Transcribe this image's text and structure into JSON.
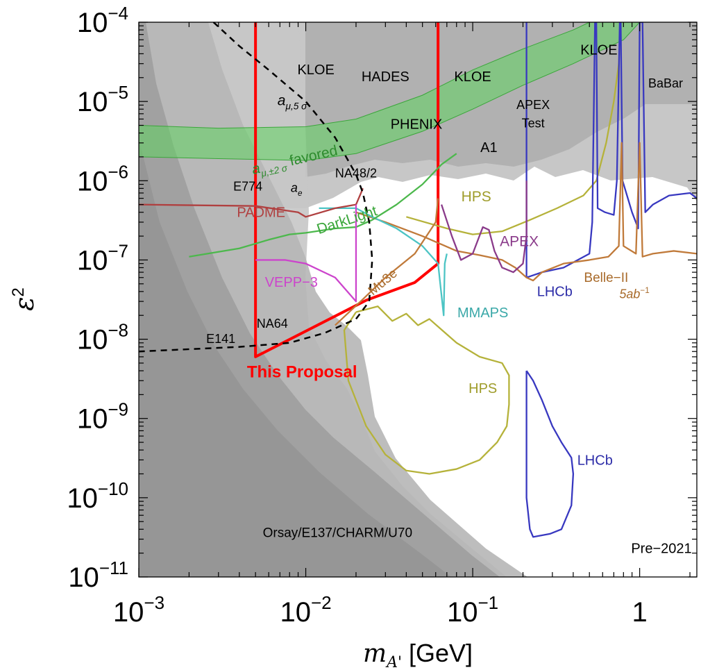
{
  "chart_data": {
    "type": "line",
    "x_scale": "log",
    "y_scale": "log",
    "xlim": [
      0.001,
      2.2
    ],
    "ylim": [
      1e-11,
      0.0001
    ],
    "xlabel": "m_A' [GeV]",
    "ylabel": "ε²",
    "x_ticks": [
      {
        "value": 0.001,
        "base": "10",
        "exp": "−3"
      },
      {
        "value": 0.01,
        "base": "10",
        "exp": "−2"
      },
      {
        "value": 0.1,
        "base": "10",
        "exp": "−1"
      },
      {
        "value": 1,
        "base": "1",
        "exp": ""
      }
    ],
    "y_ticks": [
      {
        "value": 0.0001,
        "base": "10",
        "exp": "−4"
      },
      {
        "value": 1e-05,
        "base": "10",
        "exp": "−5"
      },
      {
        "value": 1e-06,
        "base": "10",
        "exp": "−6"
      },
      {
        "value": 1e-07,
        "base": "10",
        "exp": "−7"
      },
      {
        "value": 1e-08,
        "base": "10",
        "exp": "−8"
      },
      {
        "value": 1e-09,
        "base": "10",
        "exp": "−9"
      },
      {
        "value": 1e-10,
        "base": "10",
        "exp": "−10"
      },
      {
        "value": 1e-11,
        "base": "10",
        "exp": "−11"
      }
    ],
    "grid": false,
    "corner_label": "Pre−2021",
    "colors": {
      "excluded_gray": "#b4b4b4",
      "beam_dump_gray": "#9c9c9c",
      "g_minus_2_band": "#5fd35f",
      "this_proposal": "#ff0000",
      "hps": "#b5b23a",
      "lhcb": "#3838c0",
      "belle2": "#c07a3a",
      "apex": "#8a3b8a",
      "mmaps": "#4cc4c4",
      "darklight": "#4cb84c",
      "padme": "#b04040",
      "vepp3": "#cc44cc",
      "mu3e": "#c07a3a"
    },
    "series": [
      {
        "name": "This Proposal",
        "color": "#ff0000",
        "points": [
          [
            0.005,
            0.0001
          ],
          [
            0.005,
            6e-09
          ],
          [
            0.023,
            3.1e-08
          ],
          [
            0.045,
            5.2e-08
          ],
          [
            0.062,
            9e-08
          ],
          [
            0.062,
            0.0001
          ]
        ]
      },
      {
        "name": "HPS",
        "color": "#b5b23a",
        "points": [
          [
            0.04,
            3.5e-07
          ],
          [
            0.07,
            2.5e-07
          ],
          [
            0.1,
            2.1e-07
          ],
          [
            0.15,
            2.3e-07
          ],
          [
            0.22,
            3.2e-07
          ],
          [
            0.32,
            4.5e-07
          ],
          [
            0.46,
            6.5e-07
          ],
          [
            0.55,
            1e-06
          ],
          [
            0.63,
            3e-06
          ],
          [
            0.7,
            1e-05
          ],
          [
            0.75,
            3e-05
          ],
          [
            0.77,
            0.0001
          ]
        ]
      },
      {
        "name": "HPS",
        "color": "#b5b23a",
        "points": [
          [
            0.02,
            2.2e-08
          ],
          [
            0.027,
            2.6e-08
          ],
          [
            0.033,
            1.7e-08
          ],
          [
            0.04,
            2.1e-08
          ],
          [
            0.047,
            1.5e-08
          ],
          [
            0.055,
            1.8e-08
          ],
          [
            0.08,
            9e-09
          ],
          [
            0.11,
            6e-09
          ],
          [
            0.15,
            5e-09
          ],
          [
            0.165,
            3.5e-09
          ],
          [
            0.165,
            1.5e-09
          ],
          [
            0.16,
            8e-10
          ],
          [
            0.14,
            5e-10
          ],
          [
            0.11,
            3e-10
          ],
          [
            0.08,
            2.3e-10
          ],
          [
            0.055,
            2e-10
          ],
          [
            0.04,
            2.2e-10
          ],
          [
            0.03,
            3.5e-10
          ],
          [
            0.023,
            8e-10
          ],
          [
            0.018,
            3e-09
          ],
          [
            0.017,
            1.3e-08
          ],
          [
            0.02,
            2.2e-08
          ]
        ]
      },
      {
        "name": "LHCb",
        "color": "#3838c0",
        "points": [
          [
            0.21,
            4e-09
          ],
          [
            0.23,
            3e-09
          ],
          [
            0.26,
            1.7e-09
          ],
          [
            0.3,
            8e-10
          ],
          [
            0.34,
            5e-10
          ],
          [
            0.39,
            3.2e-10
          ],
          [
            0.4,
            2e-10
          ],
          [
            0.39,
            8e-11
          ],
          [
            0.34,
            4e-11
          ],
          [
            0.29,
            3.5e-11
          ],
          [
            0.23,
            3.2e-11
          ],
          [
            0.22,
            4e-11
          ],
          [
            0.21,
            1e-10
          ],
          [
            0.21,
            4e-09
          ]
        ]
      },
      {
        "name": "LHCb",
        "color": "#3838c0",
        "points": [
          [
            0.21,
            0.0001
          ],
          [
            0.21,
            6e-08
          ],
          [
            0.26,
            7e-08
          ],
          [
            0.35,
            8e-08
          ],
          [
            0.5,
            1.2e-07
          ],
          [
            0.52,
            3e-07
          ],
          [
            0.54,
            0.0001
          ],
          [
            0.55,
            0.0001
          ],
          [
            0.56,
            4.5e-07
          ],
          [
            0.62,
            4e-07
          ],
          [
            0.7,
            3.7e-07
          ],
          [
            0.73,
            1e-06
          ],
          [
            0.76,
            0.0001
          ],
          [
            0.77,
            0.0001
          ],
          [
            0.79,
            1e-06
          ],
          [
            0.9,
            4e-07
          ],
          [
            0.98,
            2.5e-07
          ],
          [
            1.0,
            0.0001
          ],
          [
            1.04,
            0.0001
          ],
          [
            1.08,
            4e-07
          ],
          [
            1.2,
            5e-07
          ],
          [
            1.5,
            6.5e-07
          ],
          [
            2.0,
            7e-07
          ],
          [
            2.2,
            6e-07
          ]
        ]
      },
      {
        "name": "Belle-II",
        "color": "#c07a3a",
        "points": [
          [
            0.02,
            4e-07
          ],
          [
            0.03,
            3e-07
          ],
          [
            0.05,
            2e-07
          ],
          [
            0.08,
            1.3e-07
          ],
          [
            0.11,
            1.15e-07
          ],
          [
            0.15,
            1e-07
          ],
          [
            0.18,
            8e-08
          ],
          [
            0.21,
            6e-08
          ],
          [
            0.23,
            5.5e-08
          ],
          [
            0.26,
            7e-08
          ],
          [
            0.35,
            9e-08
          ],
          [
            0.5,
            1e-07
          ],
          [
            0.65,
            1.1e-07
          ],
          [
            0.75,
            1.5e-07
          ],
          [
            0.78,
            3e-06
          ],
          [
            0.8,
            1.5e-07
          ],
          [
            0.95,
            1.2e-07
          ],
          [
            1.0,
            3e-06
          ],
          [
            1.04,
            1.1e-07
          ],
          [
            1.2,
            1.2e-07
          ],
          [
            1.6,
            1.3e-07
          ],
          [
            2.2,
            1.2e-07
          ]
        ]
      },
      {
        "name": "APEX",
        "color": "#8a3b8a",
        "points": [
          [
            0.065,
            5e-07
          ],
          [
            0.075,
            2e-07
          ],
          [
            0.085,
            1e-07
          ],
          [
            0.1,
            1.2e-07
          ],
          [
            0.115,
            2.6e-07
          ],
          [
            0.125,
            2.4e-07
          ],
          [
            0.135,
            1.3e-07
          ],
          [
            0.15,
            8e-08
          ],
          [
            0.175,
            7e-08
          ],
          [
            0.2,
            9e-08
          ],
          [
            0.21,
            2e-07
          ],
          [
            0.21,
            1e-06
          ]
        ]
      },
      {
        "name": "MMAPS",
        "color": "#4cc4c4",
        "points": [
          [
            0.012,
            4.5e-07
          ],
          [
            0.02,
            4.5e-07
          ],
          [
            0.025,
            3.5e-07
          ],
          [
            0.035,
            2.5e-07
          ],
          [
            0.05,
            1.5e-07
          ],
          [
            0.062,
            9e-08
          ],
          [
            0.067,
            2e-08
          ],
          [
            0.068,
            9e-08
          ],
          [
            0.07,
            1.2e-07
          ]
        ]
      },
      {
        "name": "DarkLight",
        "color": "#4cb84c",
        "points": [
          [
            0.002,
            1.1e-07
          ],
          [
            0.004,
            1.4e-07
          ],
          [
            0.006,
            1.8e-07
          ],
          [
            0.008,
            2.1e-07
          ],
          [
            0.01,
            2.2e-07
          ],
          [
            0.015,
            2.5e-07
          ],
          [
            0.02,
            2.6e-07
          ],
          [
            0.025,
            3.2e-07
          ],
          [
            0.035,
            5e-07
          ],
          [
            0.05,
            9e-07
          ],
          [
            0.065,
            1.6e-06
          ],
          [
            0.08,
            2.2e-06
          ]
        ]
      },
      {
        "name": "PADME",
        "color": "#b04040",
        "points": [
          [
            0.001,
            5e-07
          ],
          [
            0.005,
            4.8e-07
          ],
          [
            0.009,
            4e-07
          ],
          [
            0.01,
            3.5e-07
          ],
          [
            0.015,
            4.5e-07
          ],
          [
            0.02,
            5e-07
          ],
          [
            0.022,
            8e-07
          ]
        ]
      },
      {
        "name": "VEPP-3",
        "color": "#cc44cc",
        "points": [
          [
            0.005,
            1e-07
          ],
          [
            0.0075,
            1e-07
          ],
          [
            0.01,
            9e-08
          ],
          [
            0.015,
            6e-08
          ],
          [
            0.02,
            3e-08
          ],
          [
            0.02,
            3e-07
          ],
          [
            0.02,
            5e-07
          ]
        ]
      },
      {
        "name": "Mu3e",
        "color": "#c07a3a",
        "points": [
          [
            0.015,
            1.5e-08
          ],
          [
            0.022,
            3.2e-08
          ],
          [
            0.03,
            6e-08
          ],
          [
            0.045,
            1.2e-07
          ],
          [
            0.06,
            3e-07
          ],
          [
            0.062,
            6e-07
          ]
        ]
      },
      {
        "name": "a_μ,5σ",
        "color": "#000000",
        "dashed": true,
        "points": [
          [
            0.0028,
            0.0001
          ],
          [
            0.004,
            5e-05
          ],
          [
            0.006,
            2.5e-05
          ],
          [
            0.01,
            1e-05
          ],
          [
            0.015,
            3.5e-06
          ],
          [
            0.02,
            1.2e-06
          ],
          [
            0.022,
            7e-07
          ],
          [
            0.024,
            3e-07
          ],
          [
            0.025,
            1e-07
          ],
          [
            0.024,
            3e-08
          ],
          [
            0.02,
            1.8e-08
          ],
          [
            0.013,
            1.2e-08
          ],
          [
            0.008,
            9e-09
          ],
          [
            0.004,
            8e-09
          ],
          [
            0.001,
            7e-09
          ]
        ]
      }
    ],
    "bands": [
      {
        "name": "a_μ,±2σ favored",
        "color": "#5fd35f",
        "upper": [
          [
            0.001,
            5e-06
          ],
          [
            0.003,
            4.6e-06
          ],
          [
            0.01,
            4.8e-06
          ],
          [
            0.02,
            6e-06
          ],
          [
            0.05,
            1.2e-05
          ],
          [
            0.1,
            2.5e-05
          ],
          [
            0.2,
            4.6e-05
          ],
          [
            0.4,
            8e-05
          ],
          [
            0.5,
            0.0001
          ]
        ],
        "lower": [
          [
            0.001,
            2e-06
          ],
          [
            0.003,
            1.9e-06
          ],
          [
            0.01,
            1.8e-06
          ],
          [
            0.02,
            2.2e-06
          ],
          [
            0.05,
            4.2e-06
          ],
          [
            0.1,
            8e-06
          ],
          [
            0.2,
            1.6e-05
          ],
          [
            0.4,
            3e-05
          ],
          [
            0.8,
            6e-05
          ],
          [
            1.0,
            0.0001
          ]
        ]
      }
    ],
    "annotations": [
      {
        "text": "KLOE",
        "x": 0.0115,
        "y": 2.2e-05,
        "color": "#000000",
        "size": 20
      },
      {
        "text": "HADES",
        "x": 0.03,
        "y": 1.8e-05,
        "color": "#000000",
        "size": 20
      },
      {
        "text": "KLOE",
        "x": 0.1,
        "y": 1.8e-05,
        "color": "#000000",
        "size": 20
      },
      {
        "text": "KLOE",
        "x": 0.57,
        "y": 3.9e-05,
        "color": "#000000",
        "size": 20
      },
      {
        "text": "BaBar",
        "x": 1.43,
        "y": 1.5e-05,
        "color": "#000000",
        "size": 18
      },
      {
        "text": "APEX",
        "x": 0.23,
        "y": 8e-06,
        "color": "#000000",
        "size": 18
      },
      {
        "text": "Test",
        "x": 0.23,
        "y": 4.7e-06,
        "color": "#000000",
        "size": 18
      },
      {
        "text": "PHENIX",
        "x": 0.046,
        "y": 4.5e-06,
        "color": "#000000",
        "size": 20
      },
      {
        "text": "A1",
        "x": 0.125,
        "y": 2.3e-06,
        "color": "#000000",
        "size": 20
      },
      {
        "text": "NA48/2",
        "x": 0.02,
        "y": 1.1e-06,
        "color": "#000000",
        "size": 18
      },
      {
        "text": "E774",
        "x": 0.0045,
        "y": 7.5e-07,
        "color": "#000000",
        "size": 18
      },
      {
        "text": "PADME",
        "x": 0.0054,
        "y": 3.5e-07,
        "color": "#b04040",
        "size": 20
      },
      {
        "text": "DarkLight",
        "x": 0.018,
        "y": 2.8e-07,
        "color": "#3aa63a",
        "size": 21,
        "rotate": -18
      },
      {
        "text": "HPS",
        "x": 0.105,
        "y": 5.5e-07,
        "color": "#9f9c2a",
        "size": 21
      },
      {
        "text": "APEX",
        "x": 0.19,
        "y": 1.5e-07,
        "color": "#8a3b8a",
        "size": 21
      },
      {
        "text": "VEPP−3",
        "x": 0.0082,
        "y": 4.6e-08,
        "color": "#cc44cc",
        "size": 20
      },
      {
        "text": "Mu3e",
        "x": 0.03,
        "y": 4.8e-08,
        "color": "#a86a2a",
        "size": 19,
        "rotate": -40
      },
      {
        "text": "NA64",
        "x": 0.0063,
        "y": 1.4e-08,
        "color": "#000000",
        "size": 18
      },
      {
        "text": "E141",
        "x": 0.0031,
        "y": 9e-09,
        "color": "#000000",
        "size": 18
      },
      {
        "text": "This Proposal",
        "x": 0.0095,
        "y": 3.3e-09,
        "color": "#ff0000",
        "size": 24,
        "bold": true
      },
      {
        "text": "MMAPS",
        "x": 0.115,
        "y": 1.9e-08,
        "color": "#3aa8a8",
        "size": 20
      },
      {
        "text": "LHCb",
        "x": 0.31,
        "y": 3.5e-08,
        "color": "#2c2ca8",
        "size": 20
      },
      {
        "text": "Belle−II",
        "x": 0.63,
        "y": 5.3e-08,
        "color": "#a86a2a",
        "size": 19
      },
      {
        "text": "HPS",
        "x": 0.115,
        "y": 2.1e-09,
        "color": "#9f9c2a",
        "size": 20
      },
      {
        "text": "LHCb",
        "x": 0.54,
        "y": 2.6e-10,
        "color": "#2c2ca8",
        "size": 20
      },
      {
        "text": "Orsay/E137/CHARM/U70",
        "x": 0.0155,
        "y": 3.2e-11,
        "color": "#000000",
        "size": 19
      },
      {
        "text": "Pre−2021",
        "x": 1.35,
        "y": 2e-11,
        "color": "#000000",
        "size": 20
      }
    ],
    "rich_labels": {
      "amu5": {
        "base": "a",
        "sub": "μ,5 σ"
      },
      "amu2": {
        "base": "a",
        "sub": "μ,±2 σ",
        "suffix": " favored"
      },
      "ae": {
        "base": "a",
        "sub": "e"
      },
      "belle_lumi": {
        "base": "5ab",
        "sup": "−1"
      }
    }
  }
}
